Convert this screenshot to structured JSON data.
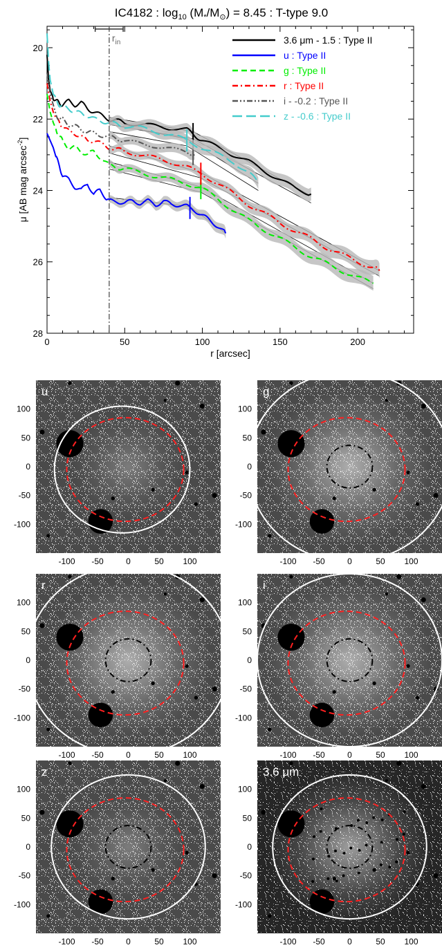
{
  "chart_data": [
    {
      "type": "line",
      "title": "IC4182 : log",
      "title_sub": "10",
      "title_mid": " (M",
      "title_star": "*",
      "title_slash": "/M",
      "title_sun": "⊙",
      "title_end": ") = 8.45 : T-type 9.0",
      "xlabel": "r [arcsec]",
      "ylabel": "μ [AB mag arcsec",
      "ylabel_sup": "-2",
      "ylabel_end": "]",
      "xlim": [
        0,
        236
      ],
      "ylim": [
        28,
        19.4
      ],
      "y_inverted": true,
      "xticks": [
        0,
        50,
        100,
        150,
        200
      ],
      "yticks": [
        20,
        22,
        24,
        26,
        28
      ],
      "rin_label": "r",
      "rin_sub": "in",
      "rin_value": 40,
      "rin_errorbar": [
        31,
        49
      ],
      "legend_position": "top-right",
      "series": [
        {
          "name": "3.6 μm - 1.5 : Type II",
          "color": "#000000",
          "dash": "solid",
          "break_r": 94,
          "x": [
            0,
            1,
            2,
            4,
            6,
            8,
            10,
            14,
            18,
            22,
            26,
            30,
            35,
            40,
            45,
            50,
            60,
            70,
            80,
            90,
            95,
            100,
            110,
            120,
            130,
            140,
            150,
            160,
            170
          ],
          "y": [
            20.2,
            20.9,
            21.2,
            21.4,
            21.5,
            21.55,
            21.6,
            21.5,
            21.6,
            21.55,
            21.7,
            21.8,
            21.9,
            22.0,
            22.05,
            22.1,
            22.15,
            22.2,
            22.25,
            22.3,
            22.45,
            22.6,
            22.8,
            23.0,
            23.2,
            23.45,
            23.7,
            23.95,
            24.1
          ]
        },
        {
          "name": "u : Type II",
          "color": "#0000ff",
          "dash": "solid",
          "break_r": 92,
          "x": [
            0,
            2,
            4,
            6,
            8,
            10,
            14,
            18,
            22,
            26,
            30,
            34,
            38,
            40,
            45,
            50,
            55,
            60,
            65,
            70,
            75,
            80,
            85,
            90,
            95,
            100,
            105,
            110,
            115
          ],
          "y": [
            22.4,
            22.6,
            22.8,
            23.1,
            23.3,
            23.6,
            23.7,
            23.9,
            24.0,
            23.8,
            24.1,
            24.0,
            24.2,
            24.3,
            24.3,
            24.35,
            24.3,
            24.35,
            24.3,
            24.4,
            24.3,
            24.4,
            24.4,
            24.45,
            24.55,
            24.7,
            24.85,
            25.0,
            25.2
          ]
        },
        {
          "name": "g : Type II",
          "color": "#00ee00",
          "dash": "dashed",
          "break_r": 99,
          "x": [
            0,
            2,
            4,
            6,
            8,
            10,
            14,
            18,
            22,
            26,
            30,
            35,
            40,
            45,
            50,
            60,
            70,
            80,
            90,
            100,
            110,
            120,
            130,
            140,
            150,
            160,
            170,
            180,
            190,
            200,
            210
          ],
          "y": [
            21.3,
            21.8,
            22.1,
            22.3,
            22.5,
            22.6,
            22.8,
            22.8,
            22.9,
            23.0,
            22.9,
            23.1,
            23.3,
            23.35,
            23.4,
            23.5,
            23.6,
            23.7,
            23.8,
            23.95,
            24.25,
            24.55,
            24.85,
            25.1,
            25.35,
            25.6,
            25.85,
            26.05,
            26.25,
            26.45,
            26.6
          ]
        },
        {
          "name": "r : Type II",
          "color": "#ff0000",
          "dash": "dashdot",
          "break_r": 99,
          "x": [
            0,
            2,
            4,
            6,
            8,
            10,
            14,
            18,
            22,
            26,
            30,
            35,
            40,
            45,
            50,
            60,
            70,
            80,
            90,
            100,
            110,
            120,
            130,
            140,
            150,
            160,
            170,
            180,
            190,
            200,
            210,
            214
          ],
          "y": [
            21.0,
            21.5,
            21.8,
            22.0,
            22.1,
            22.2,
            22.35,
            22.4,
            22.5,
            22.6,
            22.6,
            22.7,
            22.8,
            22.85,
            22.9,
            23.0,
            23.1,
            23.2,
            23.35,
            23.55,
            23.8,
            24.1,
            24.4,
            24.65,
            24.9,
            25.15,
            25.35,
            25.6,
            25.8,
            26.0,
            26.15,
            26.25
          ]
        },
        {
          "name": "i - -0.2 : Type II",
          "color": "#555555",
          "dash": "dashdotdot",
          "break_r": 94,
          "x": [
            0,
            2,
            4,
            6,
            8,
            10,
            14,
            18,
            22,
            26,
            30,
            35,
            40,
            45,
            50,
            60,
            70,
            80,
            90,
            95
          ],
          "y": [
            20.7,
            21.3,
            21.6,
            21.9,
            22.0,
            22.0,
            22.15,
            22.2,
            22.3,
            22.35,
            22.4,
            22.45,
            22.5,
            22.55,
            22.6,
            22.7,
            22.75,
            22.85,
            22.9,
            23.0
          ]
        },
        {
          "name": "z - -0.6 : Type II",
          "color": "#44cccc",
          "dash": "longdash",
          "break_r": 90,
          "x": [
            0,
            1,
            2,
            4,
            6,
            8,
            10,
            14,
            18,
            22,
            26,
            30,
            35,
            40,
            45,
            50,
            60,
            70,
            80,
            90,
            100,
            110,
            120,
            130,
            136
          ],
          "y": [
            19.6,
            20.4,
            20.9,
            21.3,
            21.5,
            21.6,
            21.65,
            21.7,
            21.8,
            21.85,
            21.9,
            22.0,
            22.05,
            22.1,
            22.15,
            22.2,
            22.25,
            22.35,
            22.45,
            22.6,
            22.8,
            23.0,
            23.2,
            23.5,
            23.8
          ]
        }
      ],
      "fits": [
        {
          "x": [
            40,
            94,
            170
          ],
          "y": [
            21.95,
            22.35,
            24.15
          ]
        },
        {
          "x": [
            40,
            94,
            170
          ],
          "y": [
            22.15,
            22.55,
            24.35
          ]
        },
        {
          "x": [
            40,
            92,
            115
          ],
          "y": [
            24.2,
            24.45,
            25.2
          ]
        },
        {
          "x": [
            40,
            99,
            210
          ],
          "y": [
            23.2,
            23.9,
            26.6
          ]
        },
        {
          "x": [
            40,
            99,
            210
          ],
          "y": [
            23.4,
            24.05,
            26.75
          ]
        },
        {
          "x": [
            40,
            99,
            214
          ],
          "y": [
            22.75,
            23.5,
            26.25
          ]
        },
        {
          "x": [
            40,
            99,
            214
          ],
          "y": [
            22.95,
            23.65,
            26.4
          ]
        },
        {
          "x": [
            40,
            90,
            136
          ],
          "y": [
            22.15,
            22.55,
            23.8
          ]
        },
        {
          "x": [
            40,
            90,
            136
          ],
          "y": [
            22.35,
            22.75,
            24.0
          ]
        }
      ]
    },
    {
      "type": "image-panels",
      "xticks": [
        -100,
        -50,
        0,
        50,
        100
      ],
      "yticks": [
        100,
        50,
        0,
        -50,
        -100
      ],
      "panels": [
        {
          "label": "u",
          "label_color": "#ffffff",
          "white_circle": true,
          "black_dashed": false,
          "bg": "noise-light"
        },
        {
          "label": "g",
          "label_color": "#ffffff",
          "white_circle": true,
          "black_dashed": true,
          "bg": "glow"
        },
        {
          "label": "r",
          "label_color": "#ffffff",
          "white_circle": true,
          "black_dashed": true,
          "bg": "glow"
        },
        {
          "label": "i",
          "label_color": "#ffffff",
          "white_circle": true,
          "black_dashed": true,
          "bg": "glow"
        },
        {
          "label": "z",
          "label_color": "#ffffff",
          "white_circle": true,
          "black_dashed": true,
          "bg": "noise-light"
        },
        {
          "label": "3.6 μm",
          "label_color": "#ffffff",
          "white_circle": true,
          "black_dashed": true,
          "bg": "dark-glow"
        }
      ],
      "colors": {
        "red_ellipse": "#ff2020",
        "white_circle": "#ffffff",
        "black_dashed": "#000000"
      }
    }
  ]
}
